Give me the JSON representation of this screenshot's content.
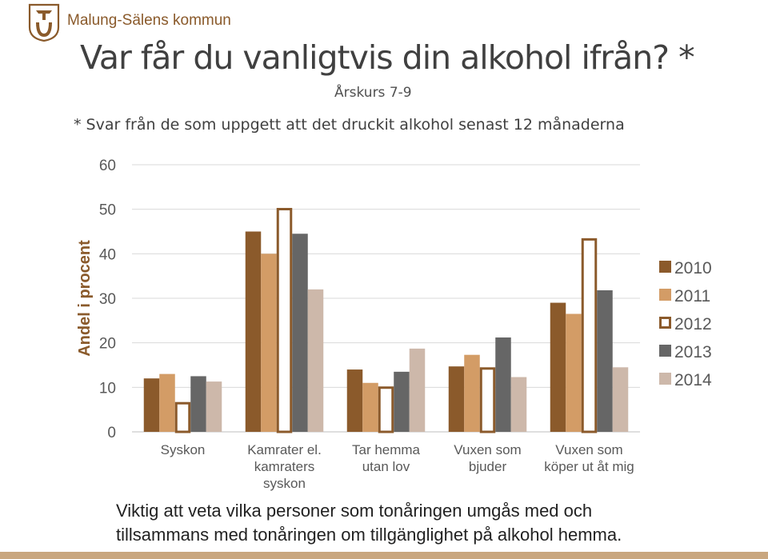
{
  "header": {
    "org_name": "Malung-Sälens kommun",
    "logo": "horseshoe-hammer-logo"
  },
  "title": "Var får du vanligtvis din alkohol ifrån? *",
  "subtitle": "Årskurs 7-9",
  "note": "*  Svar från de som uppgett att det druckit alkohol senast 12 månaderna",
  "chart_data": {
    "type": "bar",
    "ylabel": "Andel i procent",
    "ylim": [
      0,
      60
    ],
    "yticks": [
      0,
      10,
      20,
      30,
      40,
      50,
      60
    ],
    "grid": true,
    "legend_position": "right",
    "categories": [
      "Syskon",
      "Kamrater el. kamraters syskon",
      "Tar hemma utan lov",
      "Vuxen som bjuder",
      "Vuxen som köper ut åt mig"
    ],
    "category_lines": [
      [
        "Syskon"
      ],
      [
        "Kamrater el.",
        "kamraters",
        "syskon"
      ],
      [
        "Tar hemma",
        "utan lov"
      ],
      [
        "Vuxen som",
        "bjuder"
      ],
      [
        "Vuxen som",
        "köper ut åt mig"
      ]
    ],
    "series": [
      {
        "name": "2010",
        "color": "#8b5a2b",
        "fill": true,
        "values": [
          12,
          45,
          14,
          14.7,
          29
        ]
      },
      {
        "name": "2011",
        "color": "#d39c66",
        "fill": true,
        "values": [
          13,
          40,
          11,
          17.3,
          26.5
        ]
      },
      {
        "name": "2012",
        "color": "#8b5a2b",
        "fill": false,
        "values": [
          6.7,
          50.3,
          10.2,
          14.5,
          43.5
        ]
      },
      {
        "name": "2013",
        "color": "#666666",
        "fill": true,
        "values": [
          12.5,
          44.5,
          13.5,
          21.2,
          31.8
        ]
      },
      {
        "name": "2014",
        "color": "#cdb8aa",
        "fill": true,
        "values": [
          11.3,
          32,
          18.7,
          12.3,
          14.5
        ]
      }
    ]
  },
  "footer": {
    "line1": "Viktig att veta vilka personer som tonåringen umgås med och",
    "line2": "tillsammans med tonåringen om tillgänglighet på alkohol hemma."
  },
  "colors": {
    "brand": "#8a5a2b",
    "bottom_bar": "#c9a77f"
  }
}
